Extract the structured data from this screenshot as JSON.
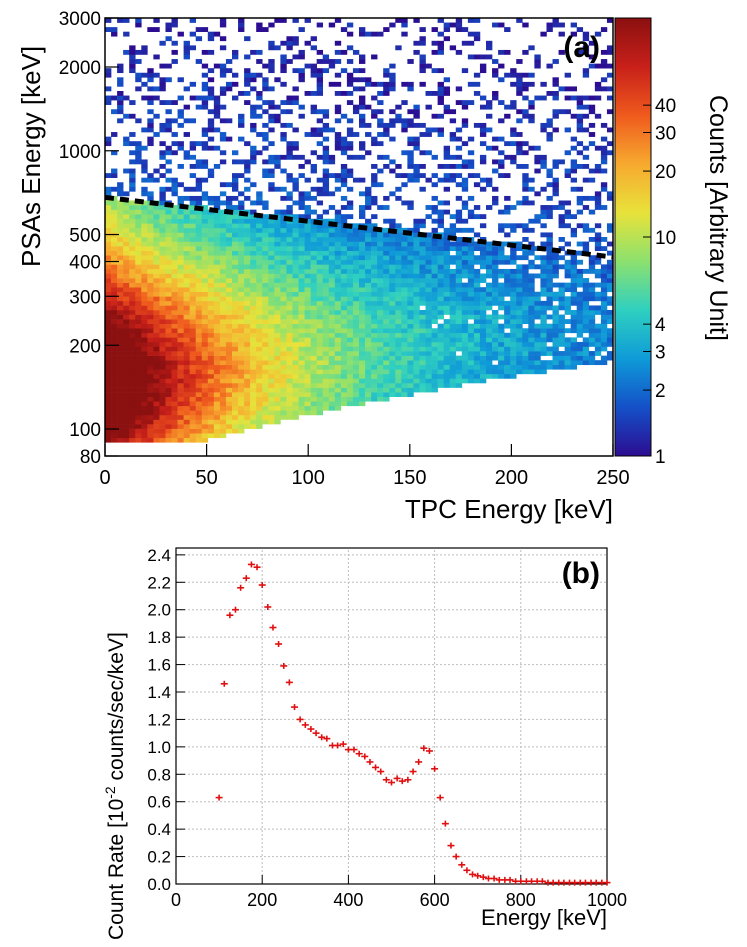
{
  "chart_data": [
    {
      "type": "heatmap",
      "panel_label": "(a)",
      "xlabel": "TPC Energy [keV]",
      "ylabel": "PSAs Energy [keV]",
      "zlabel": "Counts [Arbitrary Unit]",
      "xlim": [
        0,
        250
      ],
      "ylim": [
        80,
        3000
      ],
      "zlim": [
        1,
        100
      ],
      "y_scale": "log",
      "z_scale": "log",
      "x_ticks": [
        "0",
        "50",
        "100",
        "150",
        "200",
        "250"
      ],
      "y_ticks": [
        "80",
        "100",
        "200",
        "300",
        "400",
        "500",
        "1000",
        "2000",
        "3000"
      ],
      "z_ticks": [
        "1",
        "2",
        "3",
        "4",
        "10",
        "20",
        "30",
        "40"
      ],
      "colormap": [
        "#2c0d91",
        "#1450c8",
        "#0f9bd8",
        "#2fd0c0",
        "#8ce16e",
        "#e8e23a",
        "#f7a92f",
        "#ef5a1d",
        "#c8201a",
        "#8b1010"
      ],
      "dashed_line": {
        "x": [
          0,
          250
        ],
        "y": [
          680,
          415
        ],
        "color": "#000000"
      },
      "grid": false
    },
    {
      "type": "scatter",
      "panel_label": "(b)",
      "xlabel": "Energy [keV]",
      "ylabel_main": "Count Rate [10",
      "ylabel_sup": "-2",
      "ylabel_tail": " counts/sec/keV]",
      "xlim": [
        0,
        1000
      ],
      "ylim": [
        0,
        2.45
      ],
      "x_ticks": [
        "0",
        "200",
        "400",
        "600",
        "800",
        "1000"
      ],
      "y_ticks": [
        "0.0",
        "0.2",
        "0.4",
        "0.6",
        "0.8",
        "1.0",
        "1.2",
        "1.4",
        "1.6",
        "1.8",
        "2.0",
        "2.2",
        "2.4"
      ],
      "grid": true,
      "marker_color": "#e01010",
      "x": [
        100,
        112,
        125,
        138,
        150,
        163,
        175,
        188,
        200,
        213,
        225,
        238,
        250,
        263,
        275,
        288,
        300,
        313,
        325,
        338,
        350,
        363,
        375,
        388,
        400,
        413,
        425,
        438,
        450,
        463,
        475,
        488,
        500,
        513,
        525,
        538,
        550,
        563,
        575,
        588,
        600,
        613,
        625,
        638,
        650,
        663,
        675,
        688,
        700,
        713,
        725,
        738,
        750,
        763,
        775,
        788,
        800,
        813,
        825,
        838,
        850,
        863,
        875,
        888,
        900,
        913,
        925,
        938,
        950,
        963,
        975,
        988,
        1000
      ],
      "values": [
        0.63,
        1.46,
        1.96,
        2.0,
        2.16,
        2.23,
        2.33,
        2.31,
        2.18,
        2.02,
        1.87,
        1.75,
        1.59,
        1.47,
        1.29,
        1.2,
        1.16,
        1.13,
        1.1,
        1.07,
        1.06,
        1.01,
        1.01,
        1.02,
        0.98,
        0.98,
        0.95,
        0.93,
        0.89,
        0.85,
        0.82,
        0.76,
        0.74,
        0.77,
        0.75,
        0.76,
        0.82,
        0.89,
        0.99,
        0.97,
        0.84,
        0.63,
        0.44,
        0.28,
        0.2,
        0.14,
        0.1,
        0.07,
        0.06,
        0.05,
        0.04,
        0.04,
        0.03,
        0.03,
        0.03,
        0.02,
        0.02,
        0.02,
        0.02,
        0.02,
        0.02,
        0.01,
        0.01,
        0.01,
        0.01,
        0.01,
        0.01,
        0.01,
        0.01,
        0.01,
        0.01,
        0.01,
        0.01
      ]
    }
  ]
}
